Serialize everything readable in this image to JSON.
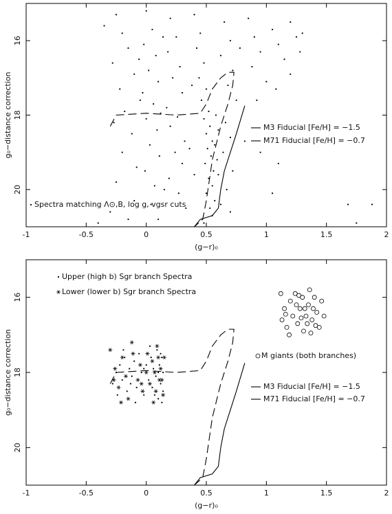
{
  "chart_data": [
    {
      "type": "scatter",
      "x_label": "(g−r)₀",
      "y_label": "g₀−distance correction",
      "xlim": [
        -1,
        2
      ],
      "ylim": [
        15,
        21
      ],
      "y_inverted": true,
      "xticks": [
        -1,
        -0.5,
        0,
        0.5,
        1,
        1.5,
        2
      ],
      "yticks": [
        16,
        18,
        20
      ],
      "series": [
        {
          "name": "Spectra matching Λ⊙,B, log g, vgsr cuts",
          "marker": "dot",
          "color": "#000000",
          "x": [
            -0.25,
            -0.2,
            -0.15,
            -0.28,
            -0.1,
            -0.22,
            -0.05,
            -0.18,
            -0.27,
            -0.12,
            -0.2,
            -0.08,
            -0.25,
            -0.1,
            -0.3,
            0.0,
            0.05,
            -0.02,
            0.08,
            0.02,
            0.1,
            -0.03,
            0.06,
            0.12,
            0.0,
            0.09,
            0.03,
            0.11,
            -0.01,
            0.07,
            0.04,
            0.1,
            0.2,
            0.25,
            0.18,
            0.28,
            0.22,
            0.3,
            0.17,
            0.26,
            0.2,
            0.32,
            0.24,
            0.3,
            0.19,
            0.27,
            0.33,
            0.4,
            0.45,
            0.42,
            0.48,
            0.44,
            0.5,
            0.46,
            0.52,
            0.48,
            0.53,
            0.5,
            0.55,
            0.51,
            0.54,
            0.49,
            0.56,
            0.52,
            0.55,
            0.5,
            0.57,
            0.53,
            0.55,
            0.48,
            0.58,
            0.6,
            0.57,
            0.59,
            0.6,
            0.65,
            0.7,
            0.62,
            0.72,
            0.68,
            0.75,
            0.66,
            0.7,
            0.64,
            0.72,
            0.67,
            0.7,
            0.85,
            0.9,
            0.95,
            0.88,
            1.0,
            1.05,
            1.1,
            1.15,
            1.2,
            1.25,
            1.28,
            1.08,
            0.92,
            1.2,
            1.3,
            -0.35,
            -0.4,
            1.1,
            1.05,
            1.68,
            1.88,
            1.75,
            0.82,
            0.95,
            0.38,
            0.36,
            -0.06,
            0.14,
            0.15,
            -0.15,
            0.78,
            0.4,
            0.62
          ],
          "values": [
            15.3,
            15.8,
            16.2,
            16.6,
            16.9,
            17.3,
            17.6,
            17.9,
            18.2,
            18.5,
            19.0,
            19.4,
            19.8,
            20.3,
            20.6,
            15.2,
            15.7,
            16.1,
            16.4,
            16.8,
            17.1,
            17.4,
            17.7,
            17.95,
            18.1,
            18.4,
            18.8,
            19.1,
            19.5,
            19.9,
            20.4,
            20.8,
            15.4,
            15.9,
            16.3,
            16.7,
            17.0,
            17.4,
            17.8,
            18.05,
            18.3,
            18.7,
            19.0,
            19.3,
            19.7,
            20.1,
            20.5,
            15.3,
            15.8,
            16.2,
            16.6,
            17.0,
            17.3,
            17.6,
            17.9,
            18.1,
            18.3,
            18.5,
            18.7,
            18.9,
            19.1,
            19.3,
            19.5,
            19.7,
            19.9,
            20.1,
            20.3,
            20.5,
            20.7,
            20.9,
            18.0,
            18.4,
            18.8,
            19.2,
            19.6,
            15.5,
            16.0,
            16.4,
            16.8,
            17.2,
            17.6,
            18.2,
            18.6,
            19.0,
            19.5,
            20.0,
            20.6,
            15.4,
            15.9,
            16.3,
            16.7,
            17.1,
            15.7,
            16.1,
            16.5,
            16.9,
            15.9,
            16.3,
            17.3,
            17.6,
            15.5,
            15.8,
            15.6,
            20.9,
            19.3,
            20.1,
            20.4,
            20.4,
            20.9,
            18.7,
            19.0,
            17.2,
            18.9,
            16.5,
            15.9,
            20.0,
            20.8,
            16.2,
            19.6,
            20.4
          ]
        },
        {
          "name": "M3 Fiducial [Fe/H] = −1.5",
          "marker": "dashed",
          "color": "#000000",
          "x": [
            -0.3,
            -0.25,
            0.0,
            0.25,
            0.45,
            0.5,
            0.55,
            0.62,
            0.68,
            0.73,
            0.72,
            0.68,
            0.62,
            0.55,
            0.5,
            0.47,
            0.4
          ],
          "values": [
            18.3,
            18.0,
            17.95,
            18.0,
            17.95,
            17.7,
            17.3,
            17.0,
            16.85,
            16.85,
            17.2,
            17.7,
            18.3,
            19.2,
            20.3,
            20.8,
            21.0
          ]
        },
        {
          "name": "M71 Fiducial [Fe/H] = −0.7",
          "marker": "solid",
          "color": "#000000",
          "x": [
            0.4,
            0.45,
            0.55,
            0.6,
            0.62,
            0.65,
            0.7,
            0.75,
            0.82
          ],
          "values": [
            21.0,
            20.8,
            20.7,
            20.5,
            20.0,
            19.5,
            19.0,
            18.5,
            17.75
          ]
        }
      ]
    },
    {
      "type": "scatter",
      "x_label": "(g−r)₀",
      "y_label": "g₀−distance correction",
      "xlim": [
        -1,
        2
      ],
      "ylim": [
        15,
        21
      ],
      "y_inverted": true,
      "xticks": [
        -1,
        -0.5,
        0,
        0.5,
        1,
        1.5,
        2
      ],
      "yticks": [
        16,
        18,
        20
      ],
      "series": [
        {
          "name": "Upper (high b) Sgr branch Spectra",
          "marker": "dot",
          "color": "#000000",
          "x": [
            -0.28,
            -0.25,
            -0.22,
            -0.2,
            -0.18,
            -0.16,
            -0.14,
            -0.12,
            -0.1,
            -0.08,
            -0.06,
            -0.04,
            -0.02,
            0.0,
            0.02,
            0.04,
            0.05,
            0.06,
            0.08,
            0.09,
            0.1,
            0.11,
            0.12,
            0.13,
            0.14,
            -0.24,
            -0.19,
            -0.09,
            0.03,
            0.07,
            0.1,
            0.12,
            -0.02,
            -0.13,
            0.14,
            0.13
          ],
          "values": [
            18.3,
            18.0,
            17.8,
            18.2,
            17.6,
            18.5,
            17.9,
            18.1,
            17.7,
            18.4,
            17.5,
            18.0,
            18.6,
            17.8,
            18.2,
            17.6,
            18.4,
            17.9,
            18.1,
            17.4,
            18.7,
            17.8,
            18.3,
            17.6,
            18.0,
            18.6,
            17.4,
            18.8,
            17.3,
            18.6,
            18.0,
            17.5,
            17.9,
            18.3,
            18.5,
            18.8
          ]
        },
        {
          "name": "Lower (lower b) Sgr branch Spectra",
          "marker": "asterisk",
          "color": "#000000",
          "x": [
            -0.3,
            -0.26,
            -0.23,
            -0.2,
            -0.17,
            -0.15,
            -0.11,
            -0.07,
            -0.05,
            -0.03,
            0.0,
            0.01,
            0.03,
            0.05,
            0.07,
            0.08,
            0.09,
            0.11,
            0.12,
            0.14,
            0.15,
            -0.21,
            -0.12,
            0.06,
            0.1,
            -0.04,
            0.13,
            -0.27
          ],
          "values": [
            17.4,
            17.9,
            18.4,
            17.6,
            18.1,
            18.7,
            17.5,
            18.2,
            17.8,
            18.5,
            18.0,
            17.5,
            18.3,
            17.7,
            18.0,
            18.5,
            17.3,
            18.2,
            17.9,
            18.6,
            17.6,
            18.8,
            17.2,
            18.8,
            17.6,
            18.3,
            18.2,
            18.2
          ]
        },
        {
          "name": "M giants (both branches)",
          "marker": "circle",
          "color": "#000000",
          "x": [
            1.12,
            1.15,
            1.13,
            1.17,
            1.2,
            1.22,
            1.24,
            1.26,
            1.28,
            1.3,
            1.31,
            1.33,
            1.35,
            1.36,
            1.38,
            1.4,
            1.42,
            1.44,
            1.46,
            1.48,
            1.19,
            1.27,
            1.34,
            1.39,
            1.25,
            1.32,
            1.16,
            1.41,
            1.29,
            1.37
          ],
          "values": [
            15.9,
            16.3,
            16.6,
            16.8,
            16.1,
            16.5,
            15.9,
            16.7,
            16.3,
            16.0,
            16.9,
            16.5,
            16.2,
            15.8,
            16.6,
            16.0,
            16.4,
            16.8,
            16.1,
            16.5,
            17.0,
            15.95,
            16.7,
            16.3,
            16.2,
            16.3,
            16.45,
            16.75,
            16.55,
            16.95
          ]
        },
        {
          "name": "M3 Fiducial [Fe/H] = −1.5",
          "marker": "dashed",
          "color": "#000000",
          "x": [
            -0.3,
            -0.25,
            0.0,
            0.25,
            0.45,
            0.5,
            0.55,
            0.62,
            0.68,
            0.73,
            0.72,
            0.68,
            0.62,
            0.55,
            0.5,
            0.47,
            0.4
          ],
          "values": [
            18.3,
            18.0,
            17.95,
            18.0,
            17.95,
            17.7,
            17.3,
            17.0,
            16.85,
            16.85,
            17.2,
            17.7,
            18.3,
            19.2,
            20.3,
            20.8,
            21.0
          ]
        },
        {
          "name": "M71 Fiducial [Fe/H] = −0.7",
          "marker": "solid",
          "color": "#000000",
          "x": [
            0.4,
            0.45,
            0.55,
            0.6,
            0.62,
            0.65,
            0.7,
            0.75,
            0.82
          ],
          "values": [
            21.0,
            20.8,
            20.7,
            20.5,
            20.0,
            19.5,
            19.0,
            18.5,
            17.75
          ]
        }
      ]
    }
  ]
}
